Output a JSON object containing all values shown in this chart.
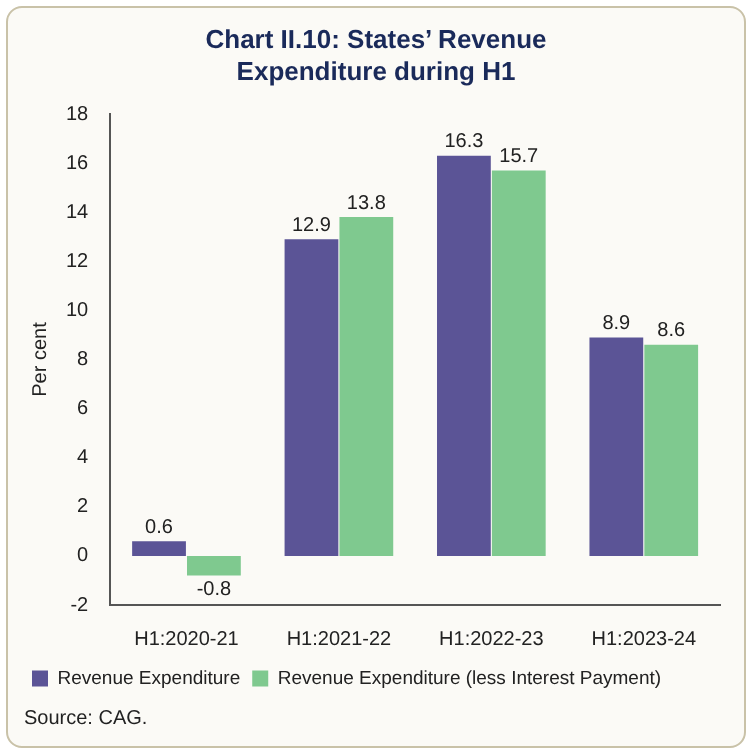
{
  "chart_data": {
    "type": "bar",
    "title": "Chart II.10: States’ Revenue Expenditure during H1",
    "ylabel": "Per cent",
    "categories": [
      "H1:2020-21",
      "H1:2021-22",
      "H1:2022-23",
      "H1:2023-24"
    ],
    "series": [
      {
        "name": "Revenue Expenditure",
        "color": "#5b5496",
        "values": [
          0.6,
          12.9,
          16.3,
          8.9
        ]
      },
      {
        "name": "Revenue Expenditure (less Interest Payment)",
        "color": "#7fc98f",
        "values": [
          -0.8,
          13.8,
          15.7,
          8.6
        ]
      }
    ],
    "ylim": [
      -2,
      18
    ],
    "yticks": [
      -2,
      0,
      2,
      4,
      6,
      8,
      10,
      12,
      14,
      16,
      18
    ],
    "data_labels": true,
    "grid": false,
    "legend": "bottom",
    "annotations": [
      "Source: CAG."
    ]
  }
}
